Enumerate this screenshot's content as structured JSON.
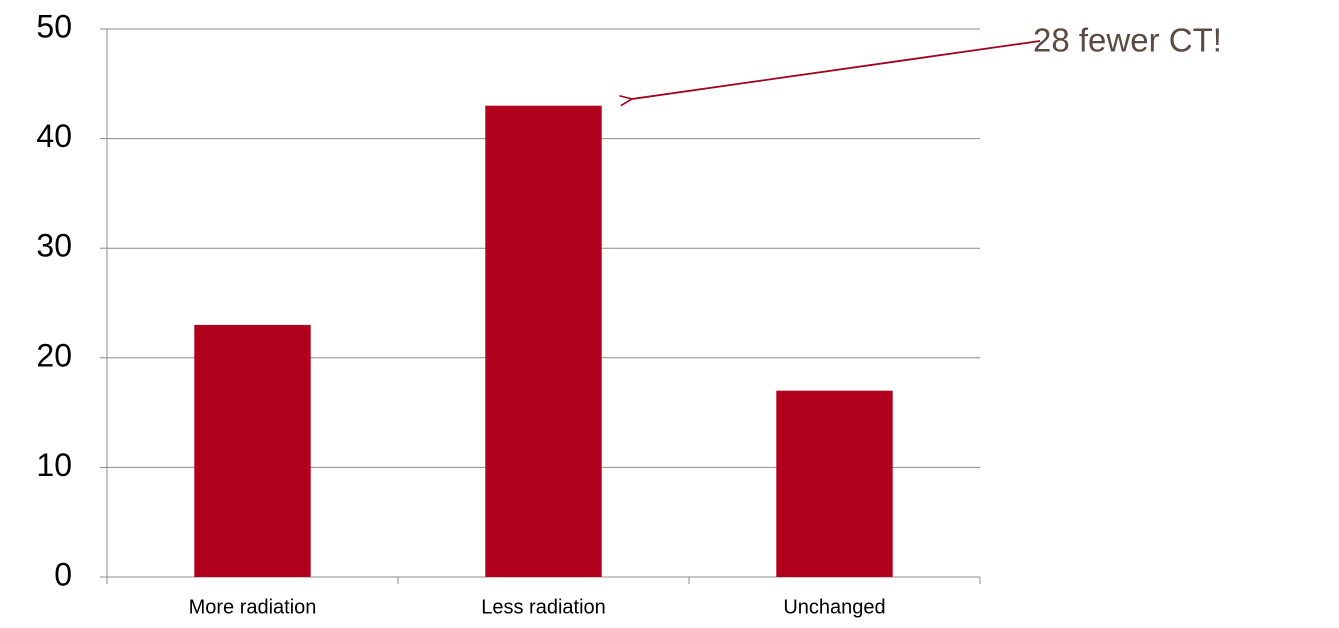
{
  "chart_data": {
    "type": "bar",
    "categories": [
      "More radiation",
      "Less radiation",
      "Unchanged"
    ],
    "values": [
      23,
      43,
      17
    ],
    "color": "#b0001e",
    "ylim": [
      0,
      50
    ],
    "yticks": [
      0,
      10,
      20,
      30,
      40,
      50
    ],
    "grid": true,
    "annotation": "28 fewer CT!"
  }
}
